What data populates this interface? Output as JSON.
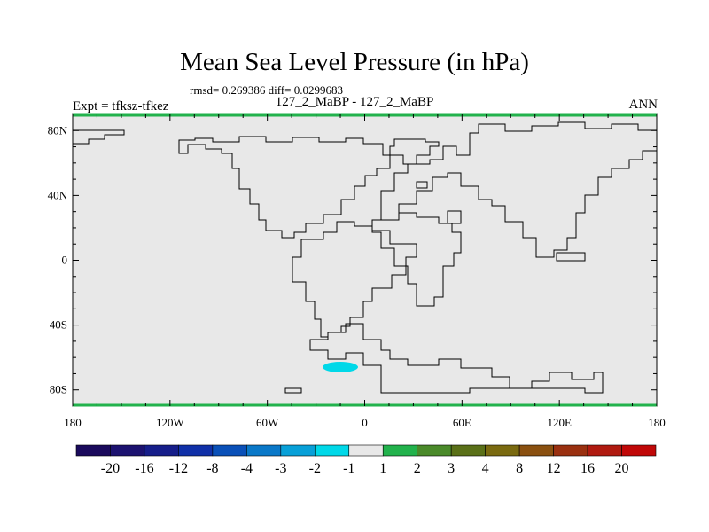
{
  "header": {
    "title": "Mean Sea Level Pressure (in hPa)",
    "stats": "rmsd= 0.269386 diff= 0.0299683",
    "subtitle": "127_2_MaBP - 127_2_MaBP",
    "expt": "Expt = tfksz-tfkez",
    "season": "ANN"
  },
  "map": {
    "lat_ticks": [
      "80N",
      "40N",
      "0",
      "40S",
      "80S"
    ],
    "lon_ticks": [
      "180",
      "120W",
      "60W",
      "0",
      "60E",
      "120E",
      "180"
    ],
    "ocean_color": "#e8e8e8",
    "coast_color": "#000000",
    "border_color": "#22b24c",
    "anomaly_region": {
      "label": "negative anomaly near Weddell Sea",
      "color": "#00d8e8"
    }
  },
  "colorbar": {
    "colors": [
      "#1a0a5c",
      "#1c1270",
      "#161e8a",
      "#1030a8",
      "#0a50b8",
      "#0a78c8",
      "#08a0d8",
      "#00d8e8",
      "#e8e8e8",
      "#22b24c",
      "#4a8a2a",
      "#5a7018",
      "#7a6a10",
      "#8a5010",
      "#9a3010",
      "#b01a10",
      "#c00808"
    ],
    "labels": [
      "-20",
      "-16",
      "-12",
      "-8",
      "-4",
      "-3",
      "-2",
      "-1",
      "1",
      "2",
      "3",
      "4",
      "8",
      "12",
      "16",
      "20"
    ]
  }
}
